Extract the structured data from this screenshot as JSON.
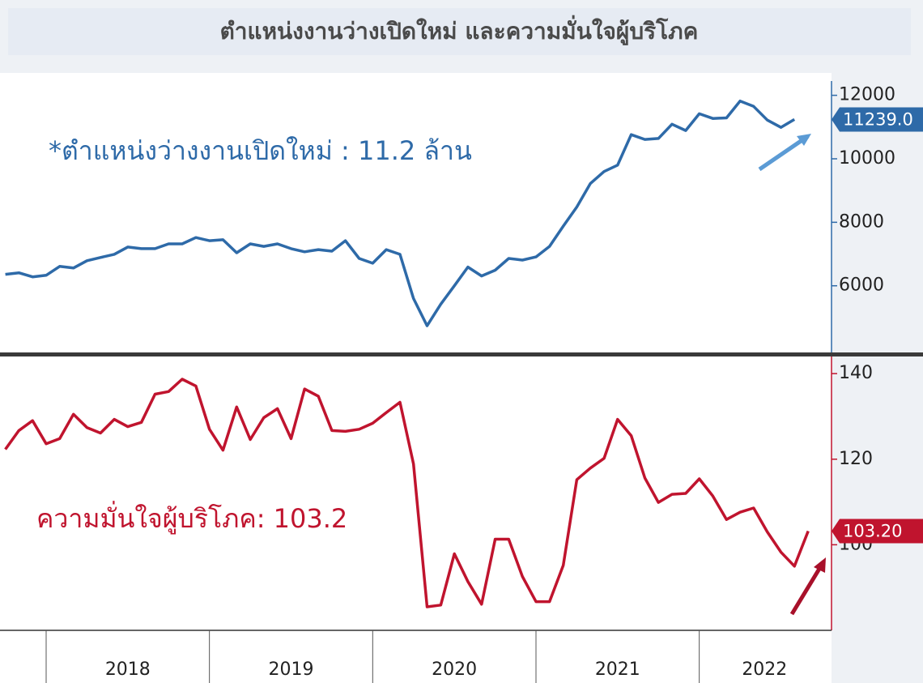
{
  "title": "ตำแหน่งงานว่างเปิดใหม่ และความมั่นใจผู้บริโภค",
  "chart_data": [
    {
      "type": "line",
      "annotation": "*ตำแหน่งว่างงานเปิดใหม่ : 11.2 ล้าน",
      "xlim": [
        2017.767,
        2022.81
      ],
      "ylim": [
        3900,
        12450
      ],
      "yticks": [
        6000,
        8000,
        10000,
        12000
      ],
      "series": [
        {
          "name": "ตำแหน่งงานว่างเปิดใหม่",
          "color": "#2e6aa8",
          "x": [
            2017.75,
            2017.833,
            2017.917,
            2018,
            2018.083,
            2018.167,
            2018.25,
            2018.333,
            2018.417,
            2018.5,
            2018.583,
            2018.667,
            2018.75,
            2018.833,
            2018.917,
            2019,
            2019.083,
            2019.167,
            2019.25,
            2019.333,
            2019.417,
            2019.5,
            2019.583,
            2019.667,
            2019.75,
            2019.833,
            2019.917,
            2020,
            2020.083,
            2020.167,
            2020.25,
            2020.333,
            2020.417,
            2020.5,
            2020.583,
            2020.667,
            2020.75,
            2020.833,
            2020.917,
            2021,
            2021.083,
            2021.167,
            2021.25,
            2021.333,
            2021.417,
            2021.5,
            2021.583,
            2021.667,
            2021.75,
            2021.833,
            2021.917,
            2022,
            2022.083,
            2022.167,
            2022.25,
            2022.333,
            2022.417,
            2022.5,
            2022.583
          ],
          "values": [
            6360,
            6410,
            6280,
            6330,
            6610,
            6560,
            6790,
            6890,
            6990,
            7220,
            7170,
            7170,
            7320,
            7320,
            7520,
            7420,
            7450,
            7040,
            7320,
            7240,
            7320,
            7170,
            7070,
            7140,
            7090,
            7420,
            6860,
            6710,
            7140,
            6990,
            5600,
            4740,
            5420,
            6000,
            6590,
            6310,
            6490,
            6860,
            6810,
            6910,
            7240,
            7880,
            8480,
            9220,
            9600,
            9800,
            10760,
            10610,
            10640,
            11090,
            10890,
            11420,
            11270,
            11290,
            11820,
            11650,
            11220,
            10990,
            11239
          ],
          "value_labels": {
            "58": "11239.0"
          }
        }
      ]
    },
    {
      "type": "line",
      "annotation": "ความมั่นใจผู้บริโภค: 103.2",
      "xlim": [
        2017.767,
        2022.81
      ],
      "xticks": [
        2018,
        2019,
        2020,
        2021,
        2022
      ],
      "x_labels": [
        {
          "value": 2018.5,
          "label": "2018"
        },
        {
          "value": 2019.5,
          "label": "2019"
        },
        {
          "value": 2020.5,
          "label": "2020"
        },
        {
          "value": 2021.5,
          "label": "2021"
        },
        {
          "value": 2022.4,
          "label": "2022"
        }
      ],
      "ylim": [
        80,
        144
      ],
      "yticks": [
        100,
        120,
        140
      ],
      "series": [
        {
          "name": "ความมั่นใจผู้บริโภค",
          "color": "#c0142e",
          "x": [
            2017.75,
            2017.833,
            2017.917,
            2018,
            2018.083,
            2018.167,
            2018.25,
            2018.333,
            2018.417,
            2018.5,
            2018.583,
            2018.667,
            2018.75,
            2018.833,
            2018.917,
            2019,
            2019.083,
            2019.167,
            2019.25,
            2019.333,
            2019.417,
            2019.5,
            2019.583,
            2019.667,
            2019.75,
            2019.833,
            2019.917,
            2020,
            2020.083,
            2020.167,
            2020.25,
            2020.333,
            2020.417,
            2020.5,
            2020.583,
            2020.667,
            2020.75,
            2020.833,
            2020.917,
            2021,
            2021.083,
            2021.167,
            2021.25,
            2021.333,
            2021.417,
            2021.5,
            2021.583,
            2021.667,
            2021.75,
            2021.833,
            2021.917,
            2022,
            2022.083,
            2022.167,
            2022.25,
            2022.333,
            2022.417,
            2022.5,
            2022.583,
            2022.667
          ],
          "values": [
            122.3,
            126.7,
            129.0,
            123.6,
            124.8,
            130.5,
            127.4,
            126.1,
            129.3,
            127.6,
            128.6,
            135.2,
            135.8,
            138.7,
            137.1,
            127.0,
            122.1,
            132.2,
            124.6,
            129.7,
            131.8,
            124.8,
            136.4,
            134.7,
            126.7,
            126.5,
            127.0,
            128.4,
            130.9,
            133.3,
            118.9,
            85.5,
            85.9,
            97.9,
            91.4,
            86.1,
            101.3,
            101.3,
            92.6,
            86.7,
            86.7,
            95.2,
            115.2,
            117.9,
            120.2,
            129.3,
            125.5,
            115.6,
            109.9,
            111.8,
            112.0,
            115.4,
            111.4,
            105.9,
            107.6,
            108.6,
            103.0,
            98.3,
            95.0,
            103.2
          ],
          "value_labels": {
            "59": "103.20"
          }
        }
      ]
    }
  ]
}
